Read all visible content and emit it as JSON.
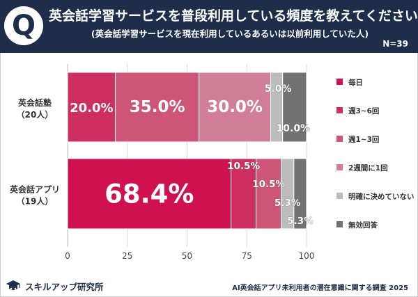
{
  "header": {
    "badge": "Q",
    "title": "英会話学習サービスを普段利用している頻度を教えてください",
    "subtitle": "(英会話学習サービスを現在利用しているあるいは以前利用していた人)",
    "n": "N=39"
  },
  "footer": {
    "logo_text": "スキルアップ研究所",
    "source": "AI英会話アプリ未利用者の潜在意識に関する調査 2025"
  },
  "chart_data": {
    "type": "bar",
    "orientation": "horizontal",
    "stacked": true,
    "title": "英会話学習サービスを普段利用している頻度を教えてください",
    "xlim": [
      0,
      100
    ],
    "xticks": [
      "0",
      "25",
      "50",
      "75",
      "100"
    ],
    "categories": [
      {
        "label": "英会話塾",
        "sub": "（20人）"
      },
      {
        "label": "英会話アプリ",
        "sub": "（19人）"
      }
    ],
    "series": [
      {
        "name": "毎日",
        "color": "#d0114f",
        "values": [
          0,
          68.4
        ],
        "labels": [
          "",
          "68.4%"
        ]
      },
      {
        "name": "週3~6回",
        "color": "#cf2e60",
        "values": [
          20.0,
          10.5
        ],
        "labels": [
          "20.0%",
          "10.5%"
        ]
      },
      {
        "name": "週1~3回",
        "color": "#cc5578",
        "values": [
          35.0,
          10.5
        ],
        "labels": [
          "35.0%",
          "10.5%"
        ]
      },
      {
        "name": "2週間に1回",
        "color": "#d17f99",
        "values": [
          30.0,
          0
        ],
        "labels": [
          "30.0%",
          ""
        ]
      },
      {
        "name": "明確に決めていない",
        "color": "#bcbcbc",
        "values": [
          5.0,
          5.3
        ],
        "labels": [
          "5.0%",
          "5.3%"
        ]
      },
      {
        "name": "無効回答",
        "color": "#727272",
        "values": [
          10.0,
          5.3
        ],
        "labels": [
          "10.0%",
          "5.3%"
        ]
      }
    ]
  }
}
